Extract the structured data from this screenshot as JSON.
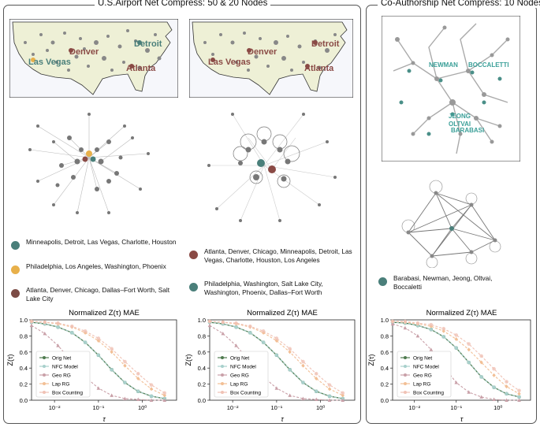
{
  "panels": {
    "left_title": "U.S.Airport Net Compress: 50 & 20 Nodes",
    "right_title": "Co-Authorship Net Compress: 10 Nodes"
  },
  "maps": {
    "cities_a": [
      "Detroit",
      "Denver",
      "Las Vegas",
      "Atlanta"
    ],
    "cities_b": [
      "Detroit",
      "Denver",
      "Las Vegas",
      "Atlanta"
    ],
    "authors": [
      "NEWMAN",
      "BOCCALETTI",
      "JEONG",
      "OLTVAI",
      "BARABASI"
    ]
  },
  "legends": {
    "a": [
      {
        "color": "#4a7f7a",
        "text": "Minneapolis, Detroit, Las Vegas, Charlotte, Houston"
      },
      {
        "color": "#e8b04a",
        "text": "Philadelphia, Los Angeles, Washington, Phoenix"
      },
      {
        "color": "#7c4b45",
        "text": "Atlanta, Denver, Chicago, Dallas–Fort Worth, Salt Lake City"
      }
    ],
    "b": [
      {
        "color": "#8a4a45",
        "text": "Atlanta, Denver, Chicago, Minneapolis, Detroit, Las Vegas, Charlotte, Houston, Los Angeles"
      },
      {
        "color": "#4a7f7a",
        "text": "Philadelphia, Washington, Salt Lake City, Washington, Phoenix, Dallas–Fort Worth"
      }
    ],
    "c": [
      {
        "color": "#4a7f7a",
        "text": "Barabasi, Newman, Jeong, Oltvai, Boccaletti"
      }
    ]
  },
  "colors": {
    "orig": "#4f7a4f",
    "nfc": "#a8d0cc",
    "geo": "#c9a0a8",
    "lap": "#f2bf95",
    "box": "#f0c2b5"
  },
  "chart_data": [
    {
      "type": "line",
      "title": "Normalized Z(τ) MAE",
      "xlabel": "τ",
      "ylabel": "Z(τ)",
      "xscale": "log",
      "xlim": [
        0.003,
        6
      ],
      "ylim": [
        0,
        1
      ],
      "xticks": [
        "10⁻²",
        "10⁻¹",
        "10⁰"
      ],
      "yticks": [
        "0.0",
        "0.2",
        "0.4",
        "0.6",
        "0.8",
        "1.0"
      ],
      "legend": "lower-left",
      "x": [
        0.003,
        0.006,
        0.012,
        0.025,
        0.05,
        0.1,
        0.2,
        0.4,
        0.8,
        1.6,
        3.2
      ],
      "series": [
        {
          "name": "Orig Net",
          "values": [
            0.97,
            0.95,
            0.91,
            0.84,
            0.72,
            0.56,
            0.38,
            0.22,
            0.11,
            0.05,
            0.02
          ]
        },
        {
          "name": "NFC Model",
          "values": [
            0.97,
            0.95,
            0.91,
            0.84,
            0.72,
            0.56,
            0.38,
            0.22,
            0.11,
            0.05,
            0.02
          ]
        },
        {
          "name": "Geo RG",
          "values": [
            0.93,
            0.83,
            0.68,
            0.48,
            0.29,
            0.15,
            0.06,
            0.02,
            0.01,
            0.0,
            0.0
          ]
        },
        {
          "name": "Lap RG",
          "values": [
            0.98,
            0.97,
            0.95,
            0.91,
            0.84,
            0.74,
            0.6,
            0.43,
            0.27,
            0.14,
            0.06
          ]
        },
        {
          "name": "Box Counting",
          "values": [
            0.98,
            0.97,
            0.96,
            0.92,
            0.86,
            0.77,
            0.64,
            0.48,
            0.33,
            0.19,
            0.09
          ]
        }
      ]
    },
    {
      "type": "line",
      "title": "Normalized Z(τ) MAE",
      "xlabel": "τ",
      "ylabel": "Z(τ)",
      "xscale": "log",
      "xlim": [
        0.003,
        6
      ],
      "ylim": [
        0,
        1
      ],
      "xticks": [
        "10⁻²",
        "10⁻¹",
        "10⁰"
      ],
      "yticks": [
        "0.0",
        "0.2",
        "0.4",
        "0.6",
        "0.8",
        "1.0"
      ],
      "legend": "lower-left",
      "x": [
        0.003,
        0.006,
        0.012,
        0.025,
        0.05,
        0.1,
        0.2,
        0.4,
        0.8,
        1.6,
        3.2
      ],
      "series": [
        {
          "name": "Orig Net",
          "values": [
            0.97,
            0.95,
            0.91,
            0.84,
            0.72,
            0.56,
            0.38,
            0.22,
            0.11,
            0.05,
            0.02
          ]
        },
        {
          "name": "NFC Model",
          "values": [
            0.97,
            0.95,
            0.91,
            0.84,
            0.72,
            0.56,
            0.38,
            0.22,
            0.11,
            0.05,
            0.02
          ]
        },
        {
          "name": "Geo RG",
          "values": [
            0.93,
            0.83,
            0.68,
            0.48,
            0.29,
            0.15,
            0.06,
            0.02,
            0.01,
            0.0,
            0.0
          ]
        },
        {
          "name": "Lap RG",
          "values": [
            0.98,
            0.97,
            0.95,
            0.91,
            0.84,
            0.74,
            0.6,
            0.43,
            0.27,
            0.14,
            0.06
          ]
        },
        {
          "name": "Box Counting",
          "values": [
            0.98,
            0.97,
            0.96,
            0.92,
            0.86,
            0.77,
            0.64,
            0.48,
            0.33,
            0.19,
            0.09
          ]
        }
      ]
    },
    {
      "type": "line",
      "title": "Normalized Z(τ) MAE",
      "xlabel": "τ",
      "ylabel": "Z(τ)",
      "xscale": "log",
      "xlim": [
        0.003,
        6
      ],
      "ylim": [
        0,
        1
      ],
      "xticks": [
        "10⁻²",
        "10⁻¹",
        "10⁰"
      ],
      "yticks": [
        "0.0",
        "0.2",
        "0.4",
        "0.6",
        "0.8",
        "1.0"
      ],
      "legend": "lower-left",
      "x": [
        0.003,
        0.006,
        0.012,
        0.025,
        0.05,
        0.1,
        0.2,
        0.4,
        0.8,
        1.6,
        3.2
      ],
      "series": [
        {
          "name": "Orig Net",
          "values": [
            0.97,
            0.96,
            0.93,
            0.88,
            0.79,
            0.65,
            0.47,
            0.29,
            0.16,
            0.08,
            0.04
          ]
        },
        {
          "name": "NFC Model",
          "values": [
            0.97,
            0.96,
            0.93,
            0.88,
            0.79,
            0.65,
            0.47,
            0.29,
            0.16,
            0.08,
            0.04
          ]
        },
        {
          "name": "Geo RG",
          "values": [
            0.95,
            0.9,
            0.8,
            0.63,
            0.42,
            0.22,
            0.1,
            0.04,
            0.01,
            0.0,
            0.0
          ]
        },
        {
          "name": "Lap RG",
          "values": [
            0.98,
            0.97,
            0.95,
            0.92,
            0.86,
            0.76,
            0.63,
            0.47,
            0.31,
            0.17,
            0.08
          ]
        },
        {
          "name": "Box Counting",
          "values": [
            0.98,
            0.98,
            0.96,
            0.94,
            0.89,
            0.81,
            0.7,
            0.55,
            0.39,
            0.23,
            0.12
          ]
        }
      ]
    }
  ]
}
